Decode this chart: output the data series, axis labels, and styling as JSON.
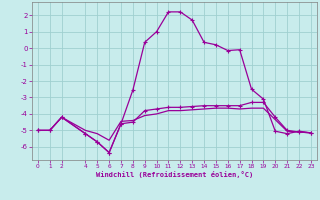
{
  "xlabel": "Windchill (Refroidissement éolien,°C)",
  "xlim": [
    -0.5,
    23.5
  ],
  "ylim": [
    -6.8,
    2.8
  ],
  "yticks": [
    2,
    1,
    0,
    -1,
    -2,
    -3,
    -4,
    -5,
    -6
  ],
  "xticks": [
    0,
    1,
    2,
    4,
    5,
    6,
    7,
    8,
    9,
    10,
    11,
    12,
    13,
    14,
    15,
    16,
    17,
    18,
    19,
    20,
    21,
    22,
    23
  ],
  "xtick_labels": [
    "0",
    "1",
    "2",
    "4",
    "5",
    "6",
    "7",
    "8",
    "9",
    "10",
    "11",
    "12",
    "13",
    "14",
    "15",
    "16",
    "17",
    "18",
    "19",
    "20",
    "21",
    "22",
    "23"
  ],
  "bg_color": "#c8ecec",
  "grid_color": "#a0d0d0",
  "line_color": "#990099",
  "line1_x": [
    0,
    1,
    2,
    4,
    5,
    6,
    7,
    8,
    9,
    10,
    11,
    12,
    13,
    14,
    15,
    16,
    17,
    18,
    19,
    20,
    21,
    22,
    23
  ],
  "line1_y": [
    -5.0,
    -5.0,
    -4.2,
    -5.2,
    -5.7,
    -6.35,
    -4.6,
    -2.55,
    0.35,
    1.0,
    2.2,
    2.2,
    1.7,
    0.35,
    0.2,
    -0.15,
    -0.1,
    -2.5,
    -3.1,
    -5.05,
    -5.2,
    -5.05,
    -5.15
  ],
  "line2_x": [
    0,
    1,
    2,
    4,
    5,
    6,
    7,
    8,
    9,
    10,
    11,
    12,
    13,
    14,
    15,
    16,
    17,
    18,
    19,
    20,
    21,
    22,
    23
  ],
  "line2_y": [
    -5.0,
    -5.0,
    -4.2,
    -5.2,
    -5.7,
    -6.35,
    -4.6,
    -4.5,
    -3.8,
    -3.7,
    -3.6,
    -3.6,
    -3.55,
    -3.5,
    -3.5,
    -3.5,
    -3.5,
    -3.3,
    -3.3,
    -4.2,
    -5.0,
    -5.1,
    -5.15
  ],
  "line3_x": [
    0,
    1,
    2,
    4,
    5,
    6,
    7,
    8,
    9,
    10,
    11,
    12,
    13,
    14,
    15,
    16,
    17,
    18,
    19,
    20,
    21,
    22,
    23
  ],
  "line3_y": [
    -5.0,
    -5.0,
    -4.2,
    -5.0,
    -5.2,
    -5.6,
    -4.45,
    -4.4,
    -4.1,
    -4.0,
    -3.8,
    -3.8,
    -3.75,
    -3.7,
    -3.65,
    -3.65,
    -3.7,
    -3.65,
    -3.65,
    -4.35,
    -5.05,
    -5.1,
    -5.15
  ]
}
